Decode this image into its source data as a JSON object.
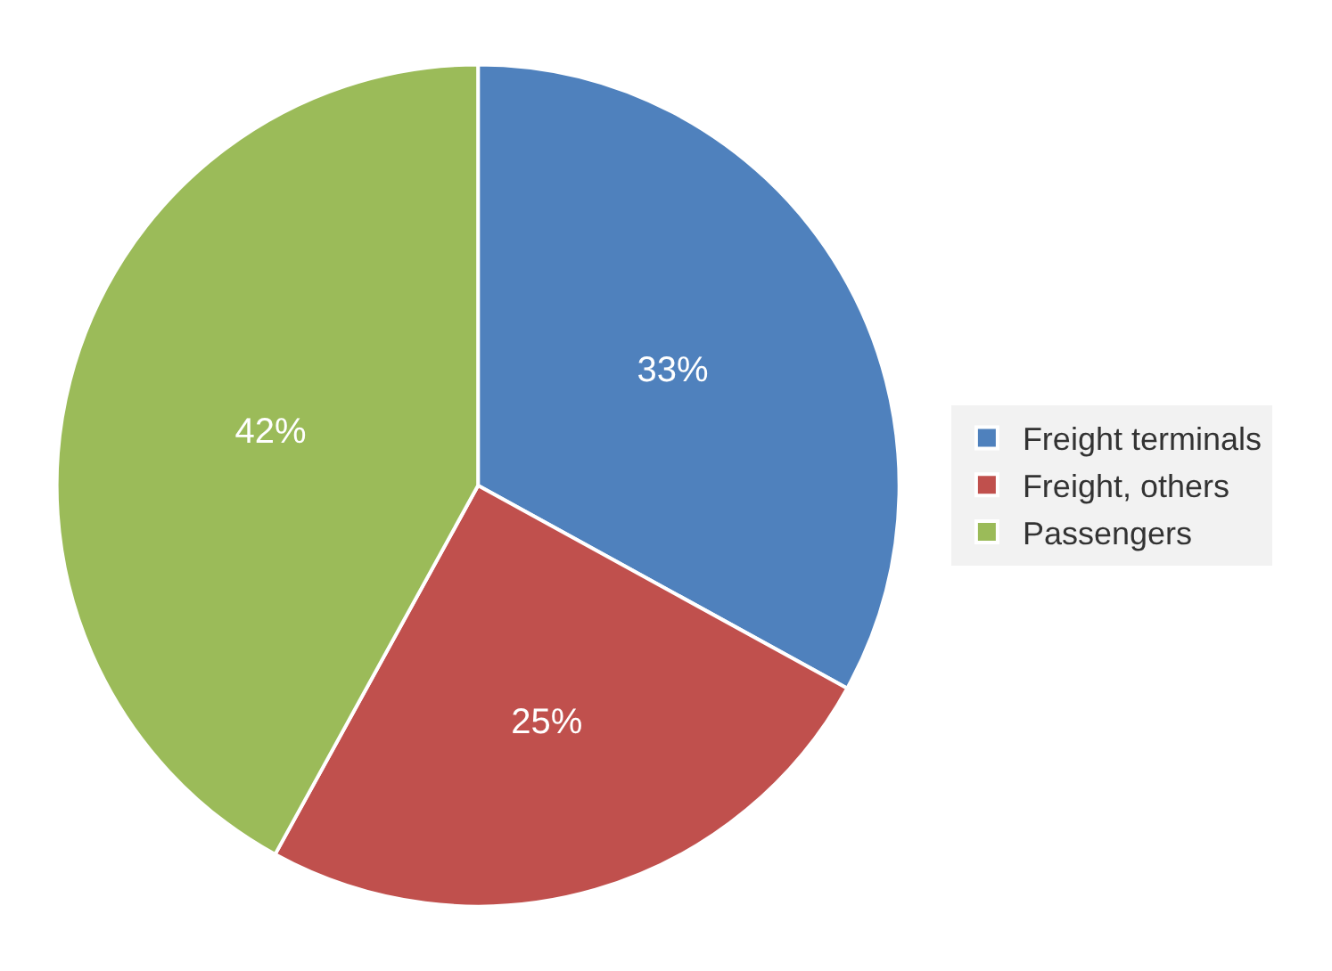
{
  "chart_data": {
    "type": "pie",
    "categories": [
      "Freight terminals",
      "Freight, others",
      "Passengers"
    ],
    "values": [
      33,
      25,
      42
    ],
    "colors": [
      "#4f81bd",
      "#c0504d",
      "#9bbb59"
    ],
    "value_labels": [
      "33%",
      "25%",
      "42%"
    ],
    "legend": "right"
  }
}
